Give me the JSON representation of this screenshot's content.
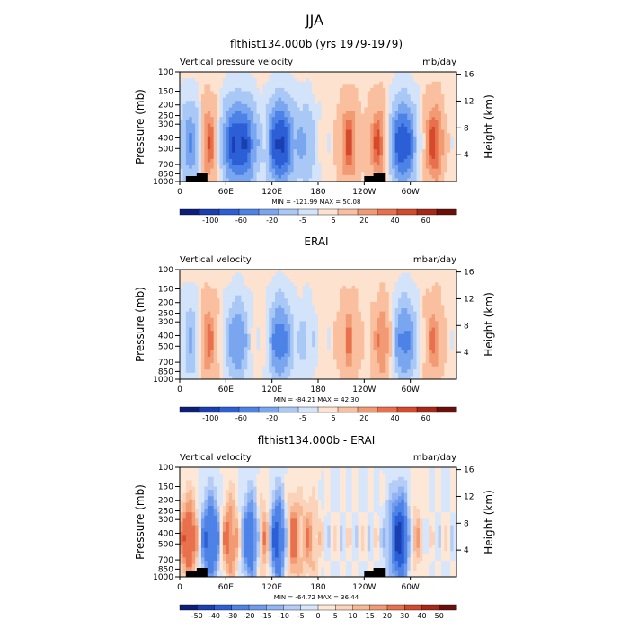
{
  "title": "JJA",
  "colors": {
    "cb_standard": [
      "#0a1f7a",
      "#1a3fb0",
      "#2c5fd6",
      "#4d82e6",
      "#7aa6f0",
      "#a9c8f6",
      "#d2e3fa",
      "#fde2cf",
      "#f9bf9f",
      "#f29a73",
      "#e8704c",
      "#d44a2b",
      "#a82818",
      "#6b0f0a"
    ],
    "cb_diff": [
      "#0a1f7a",
      "#1a3fb0",
      "#2c5fd6",
      "#4d82e6",
      "#6f9aee",
      "#91b4f2",
      "#b5cdf6",
      "#d8e6fb",
      "#fde8d8",
      "#fbd3ba",
      "#f8b893",
      "#f29a73",
      "#e8704c",
      "#d44a2b",
      "#a82818",
      "#6b0f0a"
    ]
  },
  "panels": [
    {
      "title": "flthist134.000b (yrs 1979-1979)",
      "left_label": "Vertical pressure velocity",
      "right_label": "mb/day",
      "stats": "MIN = -121.99   MAX =  50.08",
      "ylabel": "Pressure (mb)",
      "ylabel_right": "Height (km)",
      "pressure_ticks": [
        "100",
        "150",
        "200",
        "250",
        "300",
        "400",
        "500",
        "700",
        "850",
        "1000"
      ],
      "height_ticks": [
        "16",
        "12",
        "8",
        "4"
      ],
      "lon_ticks": [
        "0",
        "60E",
        "120E",
        "180",
        "120W",
        "60W"
      ],
      "colorbar_labels": [
        "-100",
        "-60",
        "-20",
        "-5",
        "5",
        "20",
        "40",
        "60"
      ],
      "palette": "cb_standard",
      "topography": true
    },
    {
      "title": "ERAI",
      "left_label": "Vertical velocity",
      "right_label": "mbar/day",
      "stats": "MIN = -84.21   MAX =  42.30",
      "ylabel": "Pressure (mb)",
      "ylabel_right": "Height (km)",
      "pressure_ticks": [
        "100",
        "150",
        "200",
        "250",
        "300",
        "400",
        "500",
        "700",
        "850",
        "1000"
      ],
      "height_ticks": [
        "16",
        "12",
        "8",
        "4"
      ],
      "lon_ticks": [
        "0",
        "60E",
        "120E",
        "180",
        "120W",
        "60W"
      ],
      "colorbar_labels": [
        "-100",
        "-60",
        "-20",
        "-5",
        "5",
        "20",
        "40",
        "60"
      ],
      "palette": "cb_standard",
      "topography": false
    },
    {
      "title": "flthist134.000b - ERAI",
      "left_label": "Vertical velocity",
      "right_label": "mbar/day",
      "stats": "MIN = -64.72   MAX =  36.44",
      "ylabel": "Pressure (mb)",
      "ylabel_right": "Height (km)",
      "pressure_ticks": [
        "100",
        "150",
        "200",
        "250",
        "300",
        "400",
        "500",
        "700",
        "850",
        "1000"
      ],
      "height_ticks": [
        "16",
        "12",
        "8",
        "4"
      ],
      "lon_ticks": [
        "0",
        "60E",
        "120E",
        "180",
        "120W",
        "60W"
      ],
      "colorbar_labels": [
        "-50",
        "-40",
        "-30",
        "-20",
        "-15",
        "-10",
        "-5",
        "0",
        "5",
        "10",
        "15",
        "20",
        "30",
        "40",
        "50"
      ],
      "palette": "cb_diff",
      "topography": true
    }
  ],
  "chart_data": [
    {
      "type": "heatmap",
      "title": "flthist134.000b (yrs 1979-1979)",
      "xlabel": "",
      "ylabel": "Pressure (mb)",
      "x_ticks": [
        "0",
        "60E",
        "120E",
        "180",
        "120W",
        "60W"
      ],
      "y_ticks": [
        "100",
        "150",
        "200",
        "250",
        "300",
        "400",
        "500",
        "700",
        "850",
        "1000"
      ],
      "ylim": [
        1000,
        100
      ],
      "min": -121.99,
      "max": 50.08,
      "units": "mb/day",
      "features_lon": [
        {
          "lon": 15,
          "value": -60
        },
        {
          "lon": 37,
          "value": 45
        },
        {
          "lon": 70,
          "value": -90
        },
        {
          "lon": 90,
          "value": -60
        },
        {
          "lon": 110,
          "value": 20
        },
        {
          "lon": 130,
          "value": -110
        },
        {
          "lon": 165,
          "value": -40
        },
        {
          "lon": 220,
          "value": 40
        },
        {
          "lon": 260,
          "value": 45
        },
        {
          "lon": 290,
          "value": -100
        },
        {
          "lon": 330,
          "value": 45
        }
      ]
    },
    {
      "type": "heatmap",
      "title": "ERAI",
      "xlabel": "",
      "ylabel": "Pressure (mb)",
      "x_ticks": [
        "0",
        "60E",
        "120E",
        "180",
        "120W",
        "60W"
      ],
      "y_ticks": [
        "100",
        "150",
        "200",
        "250",
        "300",
        "400",
        "500",
        "700",
        "850",
        "1000"
      ],
      "ylim": [
        1000,
        100
      ],
      "min": -84.21,
      "max": 42.3,
      "units": "mbar/day",
      "features_lon": [
        {
          "lon": 15,
          "value": -40
        },
        {
          "lon": 36,
          "value": 35
        },
        {
          "lon": 75,
          "value": -60
        },
        {
          "lon": 110,
          "value": 10
        },
        {
          "lon": 130,
          "value": -75
        },
        {
          "lon": 165,
          "value": -25
        },
        {
          "lon": 220,
          "value": 30
        },
        {
          "lon": 265,
          "value": 35
        },
        {
          "lon": 292,
          "value": -70
        },
        {
          "lon": 330,
          "value": 30
        }
      ]
    },
    {
      "type": "heatmap",
      "title": "flthist134.000b - ERAI",
      "xlabel": "",
      "ylabel": "Pressure (mb)",
      "x_ticks": [
        "0",
        "60E",
        "120E",
        "180",
        "120W",
        "60W"
      ],
      "y_ticks": [
        "100",
        "150",
        "200",
        "250",
        "300",
        "400",
        "500",
        "700",
        "850",
        "1000"
      ],
      "ylim": [
        1000,
        100
      ],
      "min": -64.72,
      "max": 36.44,
      "units": "mbar/day",
      "features_lon": [
        {
          "lon": 12,
          "value": 30
        },
        {
          "lon": 40,
          "value": -35
        },
        {
          "lon": 65,
          "value": 25
        },
        {
          "lon": 95,
          "value": -40
        },
        {
          "lon": 108,
          "value": 35
        },
        {
          "lon": 128,
          "value": -45
        },
        {
          "lon": 145,
          "value": 30
        },
        {
          "lon": 170,
          "value": 15
        },
        {
          "lon": 290,
          "value": -60
        },
        {
          "lon": 300,
          "value": 35
        }
      ]
    }
  ]
}
